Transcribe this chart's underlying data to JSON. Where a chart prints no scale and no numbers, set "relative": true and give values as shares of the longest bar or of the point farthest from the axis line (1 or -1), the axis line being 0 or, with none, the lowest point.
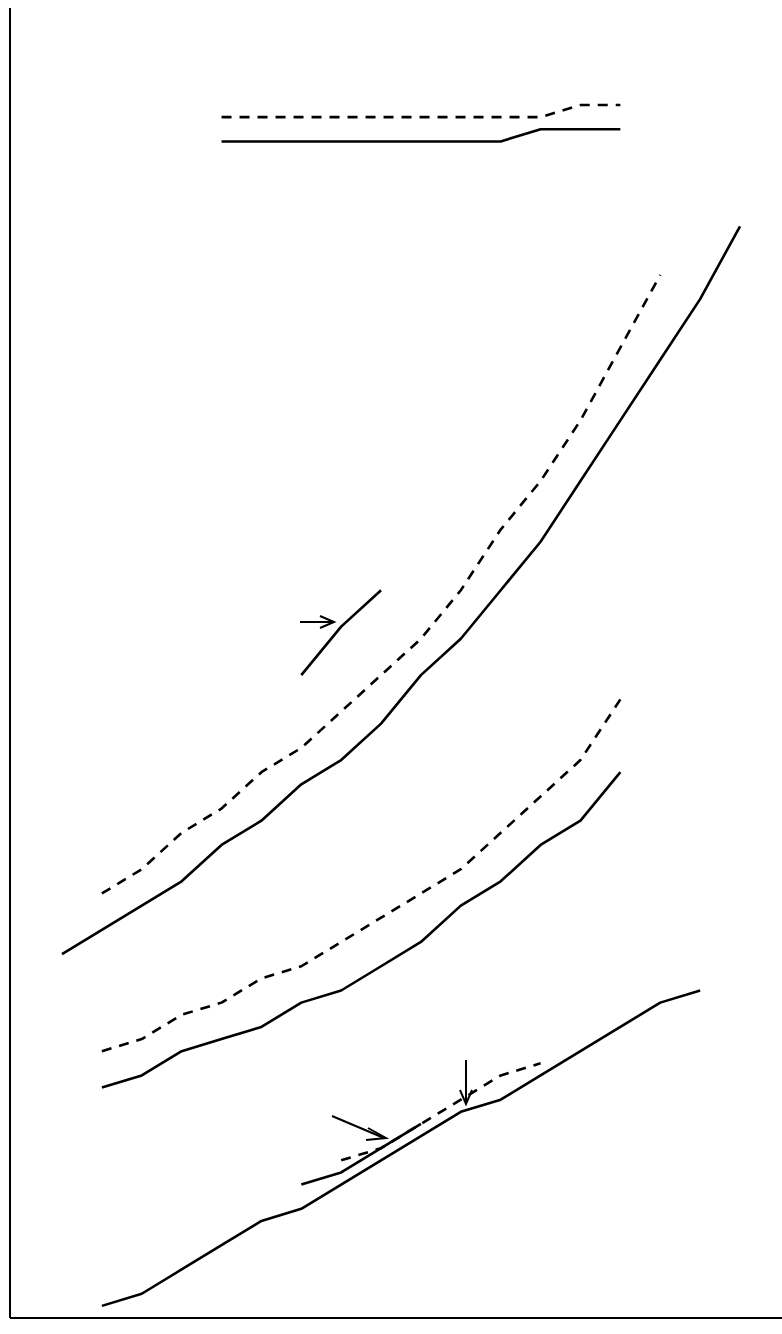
{
  "chart_data": {
    "type": "line",
    "relative": true,
    "categories": [
      null,
      null,
      null,
      null,
      null,
      null,
      null,
      null,
      null,
      null,
      null,
      null,
      null,
      null,
      null,
      null,
      null,
      null
    ],
    "grid": false,
    "legend": false,
    "marker": "none",
    "series": [
      {
        "color": "#000000",
        "line_style": "solid",
        "values": [
          null,
          null,
          null,
          null,
          0.97,
          0.97,
          0.97,
          0.97,
          0.97,
          0.97,
          0.97,
          0.97,
          0.98,
          0.98,
          0.98,
          null,
          null,
          null
        ]
      },
      {
        "color": "#000000",
        "line_style": "dashed",
        "values": [
          null,
          null,
          null,
          null,
          0.99,
          0.99,
          0.99,
          0.99,
          0.99,
          0.99,
          0.99,
          0.99,
          0.99,
          1,
          1,
          null,
          null,
          null
        ]
      },
      {
        "color": "#000000",
        "line_style": "solid",
        "values": [
          0.3,
          0.32,
          0.34,
          0.36,
          0.39,
          0.41,
          0.44,
          0.46,
          0.49,
          0.53,
          0.56,
          0.6,
          0.64,
          0.69,
          0.74,
          0.79,
          0.84,
          0.9
        ]
      },
      {
        "color": "#000000",
        "line_style": "dashed",
        "values": [
          null,
          0.35,
          0.37,
          0.4,
          0.42,
          0.45,
          0.47,
          0.5,
          0.53,
          0.56,
          0.6,
          0.65,
          0.69,
          0.74,
          0.8,
          0.86,
          null,
          null
        ]
      },
      {
        "color": "#000000",
        "line_style": "solid",
        "values": [
          null,
          null,
          null,
          null,
          null,
          null,
          0.53,
          0.57,
          0.6,
          null,
          null,
          null,
          null,
          null,
          null,
          null,
          null,
          null
        ]
      },
      {
        "color": "#000000",
        "line_style": "dashed",
        "values": [
          null,
          0.22,
          0.23,
          0.25,
          0.26,
          0.28,
          0.29,
          0.31,
          0.33,
          0.35,
          0.37,
          0.4,
          0.43,
          0.46,
          0.51,
          null,
          null,
          null
        ]
      },
      {
        "color": "#000000",
        "line_style": "solid",
        "values": [
          null,
          0.19,
          0.2,
          0.22,
          0.23,
          0.24,
          0.26,
          0.27,
          0.29,
          0.31,
          0.34,
          0.36,
          0.39,
          0.41,
          0.45,
          null,
          null,
          null
        ]
      },
      {
        "color": "#000000",
        "line_style": "solid",
        "values": [
          null,
          0.01,
          0.02,
          0.04,
          0.06,
          0.08,
          0.09,
          0.11,
          0.13,
          0.15,
          0.17,
          0.18,
          0.2,
          0.22,
          0.24,
          0.26,
          0.27,
          null
        ]
      },
      {
        "color": "#000000",
        "line_style": "dashed",
        "values": [
          null,
          null,
          null,
          null,
          null,
          null,
          null,
          0.13,
          0.14,
          0.16,
          0.18,
          0.2,
          0.21,
          null,
          null,
          null,
          null,
          null
        ]
      },
      {
        "color": "#000000",
        "line_style": "solid",
        "values": [
          null,
          null,
          null,
          null,
          null,
          null,
          0.11,
          0.12,
          0.14,
          0.16,
          null,
          null,
          null,
          null,
          null,
          null,
          null,
          null
        ]
      }
    ]
  }
}
